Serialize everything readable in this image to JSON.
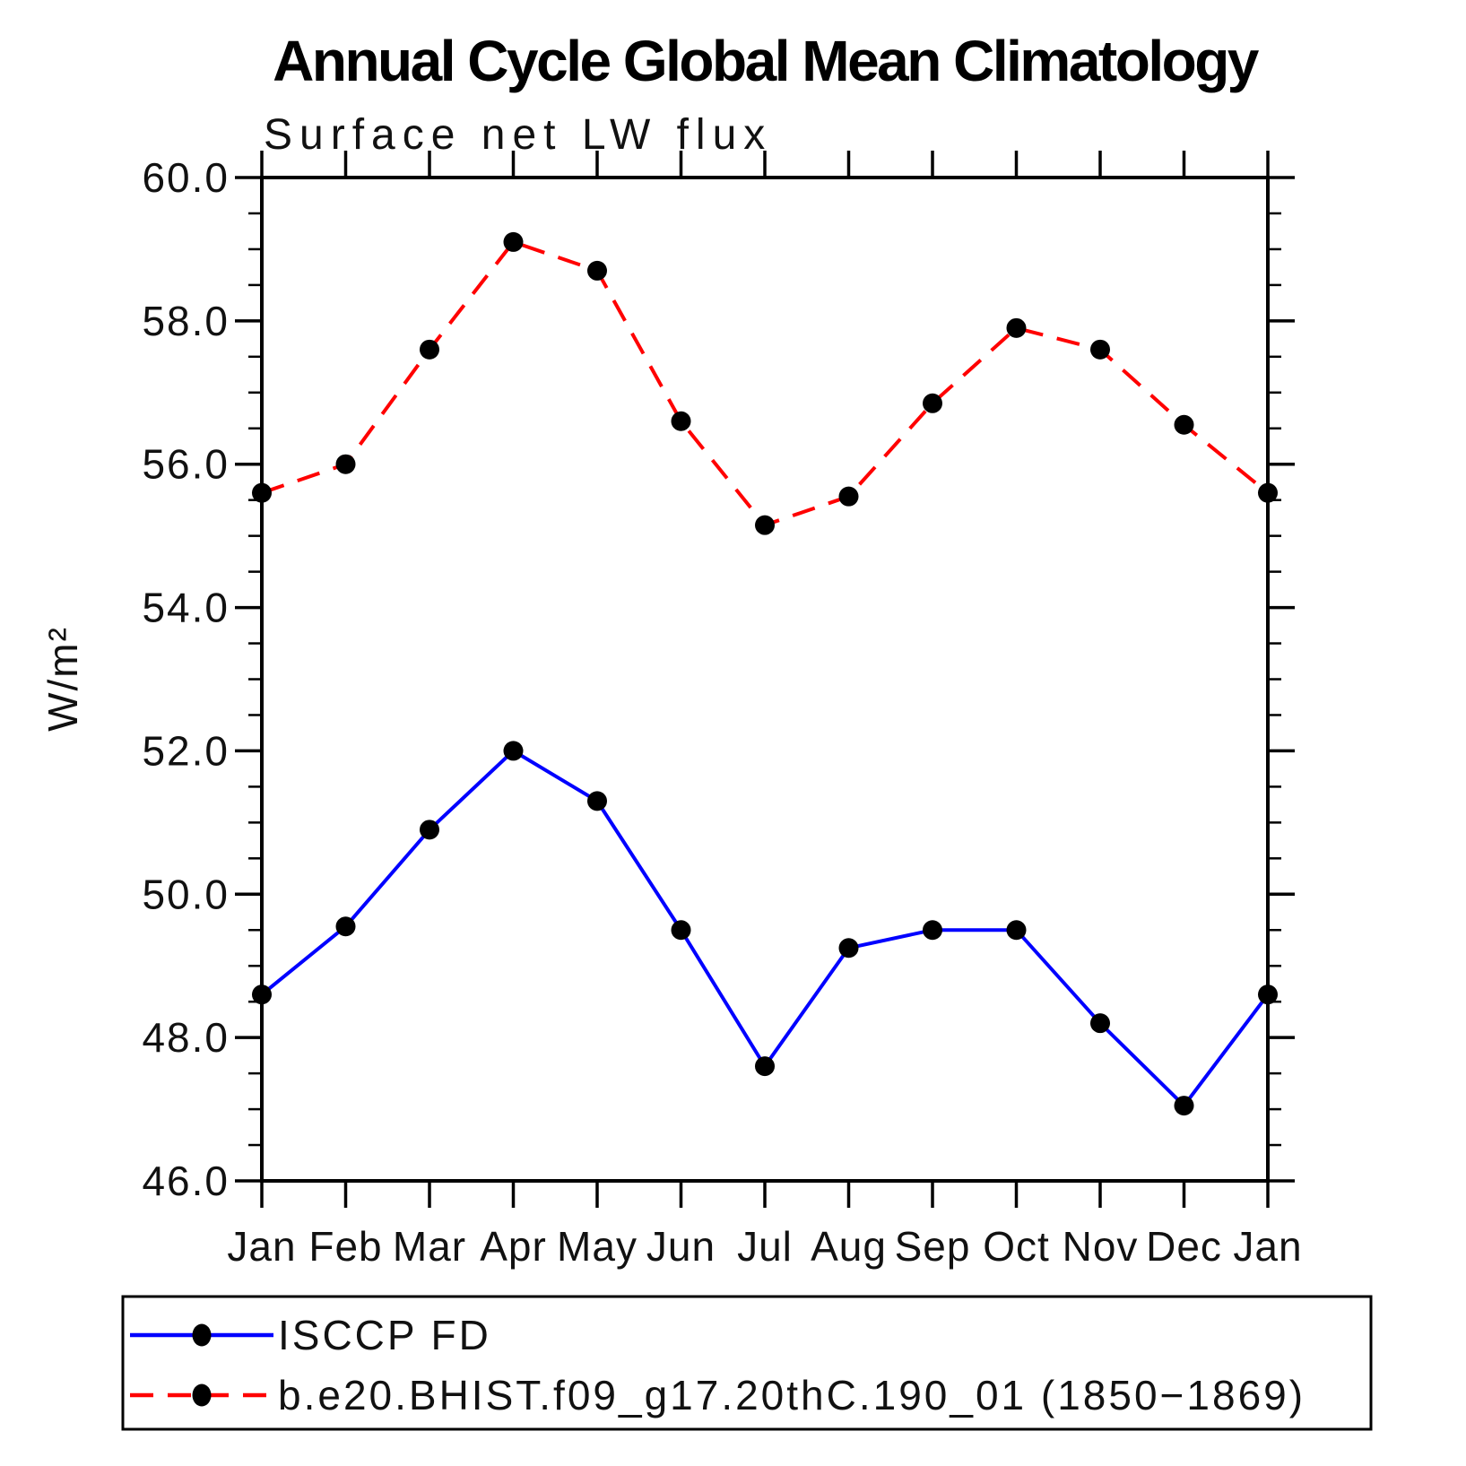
{
  "title": "Annual Cycle Global Mean Climatology",
  "subtitle": "Surface net LW flux",
  "chart_data": {
    "type": "line",
    "x_categories": [
      "Jan",
      "Feb",
      "Mar",
      "Apr",
      "May",
      "Jun",
      "Jul",
      "Aug",
      "Sep",
      "Oct",
      "Nov",
      "Dec",
      "Jan"
    ],
    "ylabel": "W/m²",
    "ylim": [
      46.0,
      60.0
    ],
    "ytick_major_step": 2.0,
    "ytick_minor_step": 0.5,
    "ytick_labels": [
      "60.0",
      "58.0",
      "56.0",
      "54.0",
      "52.0",
      "50.0",
      "48.0",
      "46.0"
    ],
    "grid": false,
    "legend_position": "bottom-left",
    "axis_color": "#000000",
    "marker_color": "#000000",
    "series": [
      {
        "name": "ISCCP FD",
        "color": "#0000ff",
        "line_style": "solid",
        "marker": "circle",
        "values": [
          48.6,
          49.55,
          50.9,
          52.0,
          51.3,
          49.5,
          47.6,
          49.25,
          49.5,
          49.5,
          48.2,
          47.05,
          48.6
        ]
      },
      {
        "name": "b.e20.BHIST.f09_g17.20thC.190_01 (1850−1869)",
        "color": "#ff0000",
        "line_style": "dashed",
        "marker": "circle",
        "values": [
          55.6,
          56.0,
          57.6,
          59.1,
          58.7,
          56.6,
          55.15,
          55.55,
          56.85,
          57.9,
          57.6,
          56.55,
          55.6
        ]
      }
    ]
  }
}
